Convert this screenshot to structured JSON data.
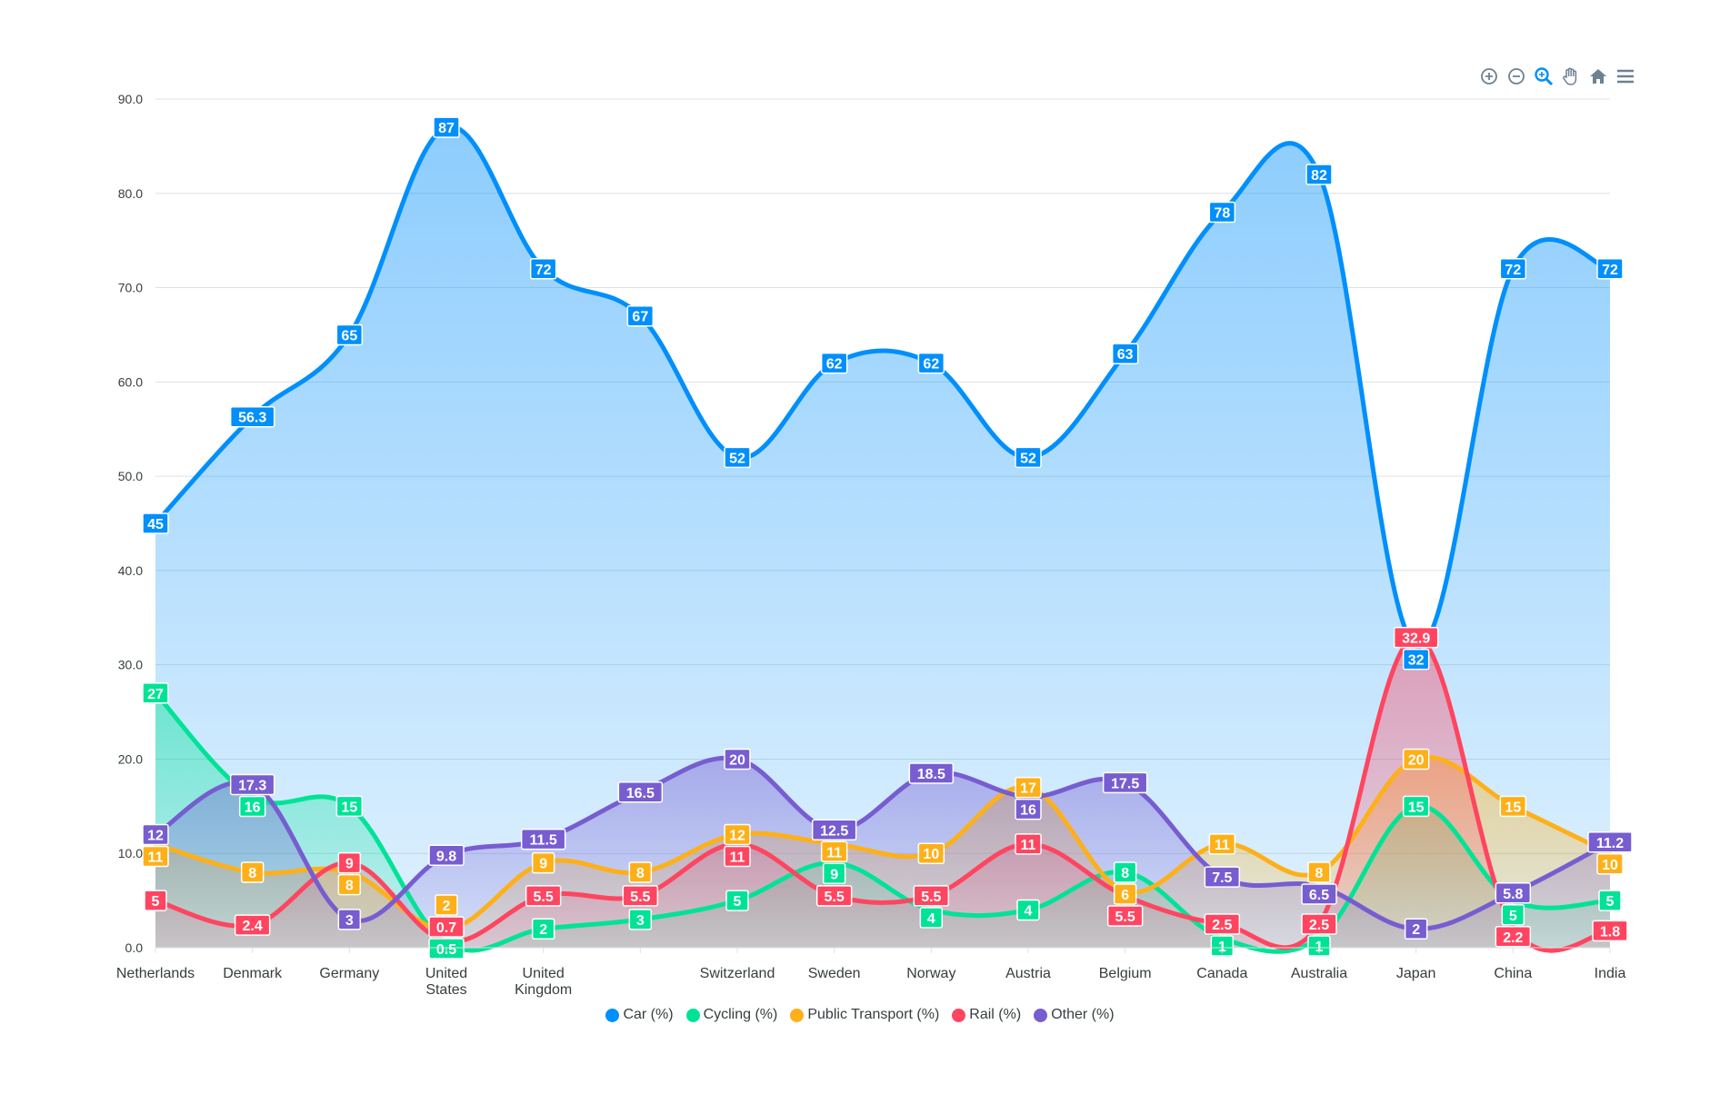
{
  "chart_data": {
    "type": "area",
    "title": "",
    "xlabel": "",
    "ylabel": "",
    "ylim": [
      0,
      90
    ],
    "yticks": [
      "0.0",
      "10.0",
      "20.0",
      "30.0",
      "40.0",
      "50.0",
      "60.0",
      "70.0",
      "80.0",
      "90.0"
    ],
    "grid": true,
    "legend_position": "bottom",
    "categories": [
      "Netherlands",
      "Denmark",
      "Germany",
      "United States",
      "United Kingdom",
      "",
      "Switzerland",
      "Sweden",
      "Norway",
      "Austria",
      "Belgium",
      "Canada",
      "Australia",
      "Japan",
      "China",
      "India"
    ],
    "series": [
      {
        "name": "Car (%)",
        "color": "#008FFB",
        "values": [
          45,
          56.3,
          65,
          87,
          72,
          67,
          52,
          62,
          62,
          52,
          63,
          78,
          82,
          32,
          72,
          72
        ]
      },
      {
        "name": "Cycling (%)",
        "color": "#00E396",
        "values": [
          27,
          16,
          15,
          0.5,
          2,
          3,
          5,
          9,
          4,
          4,
          8,
          1,
          1,
          15,
          5,
          5
        ]
      },
      {
        "name": "Public Transport (%)",
        "color": "#FEB019",
        "values": [
          11,
          8,
          8,
          2,
          9,
          8,
          12,
          11,
          10,
          17,
          6,
          11,
          8,
          20,
          15,
          10
        ]
      },
      {
        "name": "Rail (%)",
        "color": "#FF4560",
        "values": [
          5,
          2.4,
          9,
          0.7,
          5.5,
          5.5,
          11,
          5.5,
          5.5,
          11,
          5.5,
          2.5,
          2.5,
          32.9,
          2.2,
          1.8
        ]
      },
      {
        "name": "Other (%)",
        "color": "#775DD0",
        "values": [
          12,
          17.3,
          3,
          9.8,
          11.5,
          16.5,
          20,
          12.5,
          18.5,
          16,
          17.5,
          7.5,
          6.5,
          2,
          5.8,
          11.2
        ]
      }
    ]
  },
  "toolbar": {
    "icons": [
      "zoom-in-icon",
      "zoom-out-icon",
      "selection-zoom-icon",
      "pan-hand-icon",
      "home-reset-icon",
      "menu-icon"
    ]
  }
}
